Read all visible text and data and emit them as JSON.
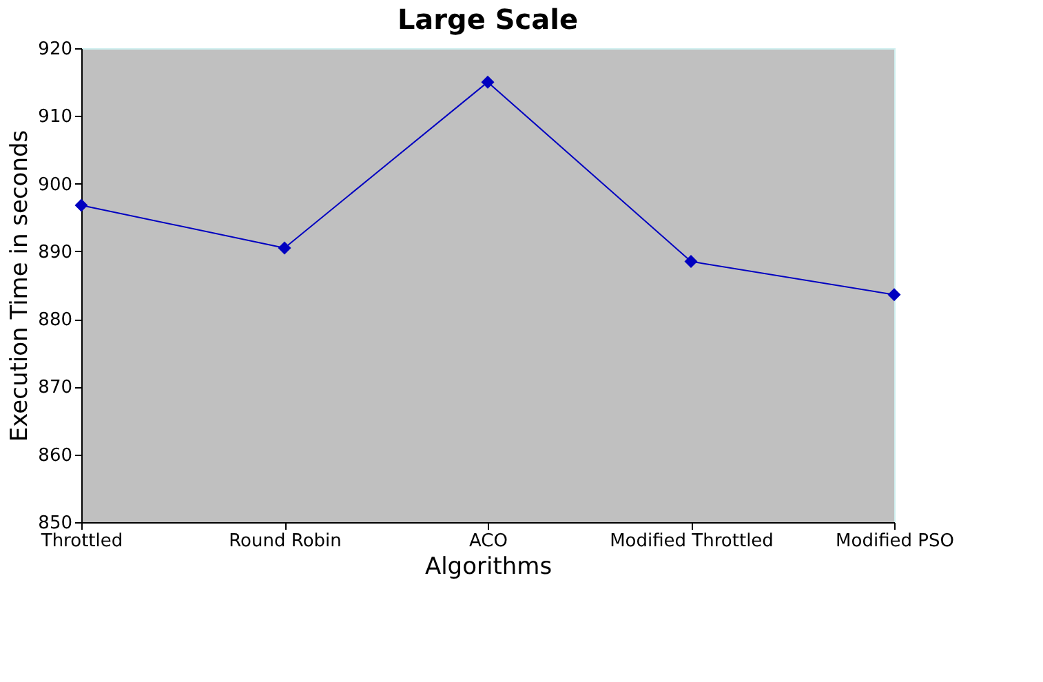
{
  "chart_data": {
    "type": "line",
    "title": "Large Scale",
    "xlabel": "Algorithms",
    "ylabel": "Execution Time in seconds",
    "categories": [
      "Throttled",
      "Round Robin",
      "ACO",
      "Modified Throttled",
      "Modified PSO"
    ],
    "series": [
      {
        "color": "#0000c0",
        "values": [
          896.8,
          890.5,
          915,
          888.5,
          883.6
        ]
      }
    ],
    "ylim": [
      850,
      920
    ],
    "yticks": [
      850,
      860,
      870,
      880,
      890,
      900,
      910,
      920
    ],
    "grid": false,
    "marker": "diamond",
    "line_style": "solid"
  }
}
